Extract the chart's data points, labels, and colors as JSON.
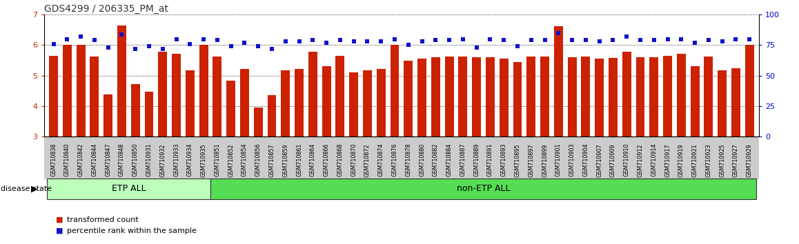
{
  "title": "GDS4299 / 206335_PM_at",
  "categories": [
    "GSM710838",
    "GSM710840",
    "GSM710842",
    "GSM710844",
    "GSM710847",
    "GSM710848",
    "GSM710850",
    "GSM710931",
    "GSM710932",
    "GSM710933",
    "GSM710934",
    "GSM710935",
    "GSM710851",
    "GSM710852",
    "GSM710854",
    "GSM710856",
    "GSM710857",
    "GSM710859",
    "GSM710861",
    "GSM710864",
    "GSM710866",
    "GSM710868",
    "GSM710870",
    "GSM710872",
    "GSM710874",
    "GSM710876",
    "GSM710878",
    "GSM710880",
    "GSM710882",
    "GSM710884",
    "GSM710887",
    "GSM710889",
    "GSM710891",
    "GSM710893",
    "GSM710895",
    "GSM710897",
    "GSM710899",
    "GSM710901",
    "GSM710903",
    "GSM710904",
    "GSM710907",
    "GSM710909",
    "GSM710910",
    "GSM710912",
    "GSM710914",
    "GSM710917",
    "GSM710919",
    "GSM710921",
    "GSM710923",
    "GSM710925",
    "GSM710927",
    "GSM710929"
  ],
  "bar_values": [
    5.65,
    6.0,
    6.02,
    5.62,
    4.38,
    6.65,
    4.72,
    4.48,
    5.78,
    5.72,
    5.18,
    6.0,
    5.62,
    4.83,
    5.22,
    3.95,
    4.37,
    5.18,
    5.22,
    5.78,
    5.3,
    5.65,
    5.1,
    5.18,
    5.22,
    6.0,
    5.5,
    5.55,
    5.6,
    5.62,
    5.62,
    5.6,
    5.6,
    5.55,
    5.45,
    5.62,
    5.62,
    6.62,
    5.6,
    5.62,
    5.55,
    5.58,
    5.78,
    5.6,
    5.6,
    5.65,
    5.72,
    5.3,
    5.62,
    5.18,
    5.25,
    6.0
  ],
  "dot_values": [
    76,
    80,
    82,
    79,
    73,
    84,
    72,
    74,
    72,
    80,
    76,
    80,
    79,
    74,
    77,
    74,
    72,
    78,
    78,
    79,
    77,
    79,
    78,
    78,
    78,
    80,
    75,
    78,
    79,
    79,
    80,
    73,
    80,
    79,
    74,
    79,
    79,
    85,
    79,
    79,
    78,
    79,
    82,
    79,
    79,
    80,
    80,
    77,
    79,
    78,
    80,
    80
  ],
  "etp_count": 12,
  "ylim_left": [
    3,
    7
  ],
  "ylim_right": [
    0,
    100
  ],
  "yticks_left": [
    3,
    4,
    5,
    6,
    7
  ],
  "yticks_right": [
    0,
    25,
    50,
    75,
    100
  ],
  "bar_color": "#cc2200",
  "dot_color": "#1111cc",
  "etp_color": "#bbffbb",
  "non_etp_color": "#55dd55",
  "group_label_etp": "ETP ALL",
  "group_label_non_etp": "non-ETP ALL",
  "disease_state_label": "disease state",
  "legend_bar": "transformed count",
  "legend_dot": "percentile rank within the sample",
  "title_color": "#333333",
  "axis_color_left": "#cc2200",
  "axis_color_right": "#0000cc",
  "xtick_bg_color": "#cccccc"
}
